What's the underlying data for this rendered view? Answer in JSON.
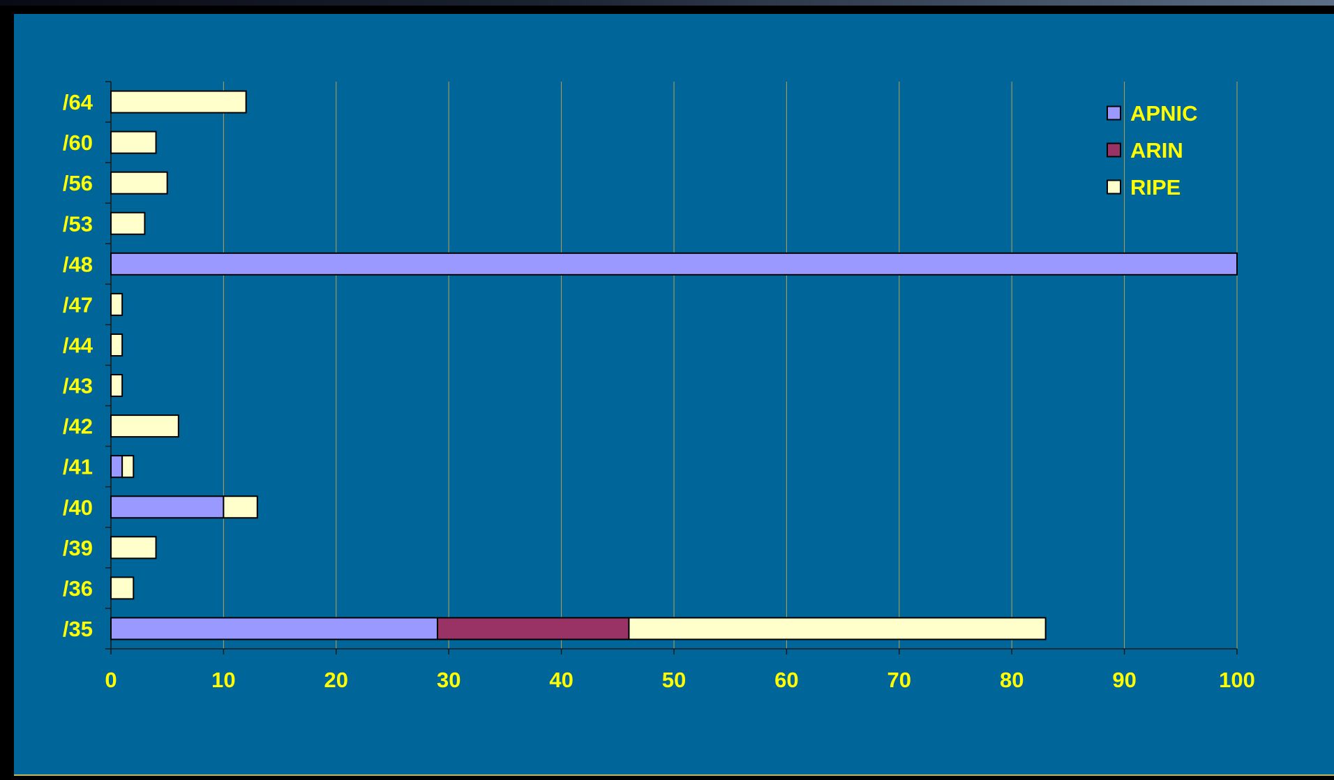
{
  "colors": {
    "background": "#006699",
    "text": "#FFFF00",
    "gridline": "#B8A050",
    "APNIC": "#9999FF",
    "ARIN": "#993366",
    "RIPE": "#FFFFCC"
  },
  "chart_data": {
    "type": "bar",
    "orientation": "horizontal",
    "stacked": true,
    "title": "",
    "xlabel": "",
    "ylabel": "",
    "categories": [
      "/64",
      "/60",
      "/56",
      "/53",
      "/48",
      "/47",
      "/44",
      "/43",
      "/42",
      "/41",
      "/40",
      "/39",
      "/36",
      "/35"
    ],
    "series": [
      {
        "name": "APNIC",
        "values": [
          0,
          0,
          0,
          0,
          100,
          0,
          0,
          0,
          0,
          1,
          10,
          0,
          0,
          29
        ]
      },
      {
        "name": "ARIN",
        "values": [
          0,
          0,
          0,
          0,
          0,
          0,
          0,
          0,
          0,
          0,
          0,
          0,
          0,
          17
        ]
      },
      {
        "name": "RIPE",
        "values": [
          12,
          4,
          5,
          3,
          0,
          1,
          1,
          1,
          6,
          1,
          3,
          4,
          2,
          37
        ]
      }
    ],
    "xlim": [
      0,
      100
    ],
    "xticks": [
      0,
      10,
      20,
      30,
      40,
      50,
      60,
      70,
      80,
      90,
      100
    ],
    "grid": "vertical",
    "legend_position": "top-right"
  }
}
